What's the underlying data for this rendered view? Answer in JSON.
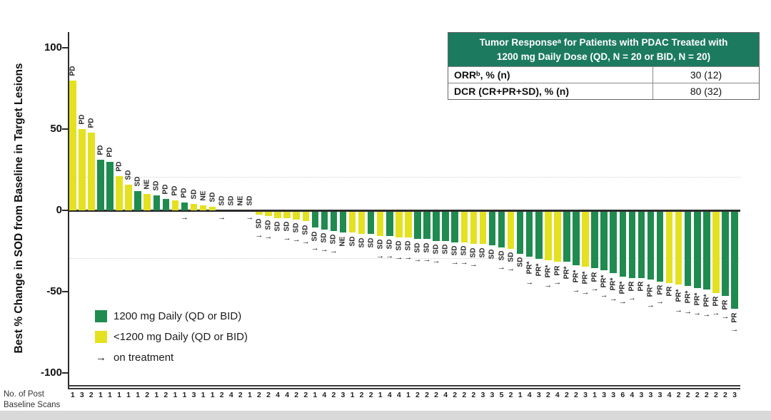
{
  "colors": {
    "green": "#1f8b4e",
    "yellow": "#e4e120",
    "table_header_green": "#1c7a5e",
    "ref_line_gray": "#d2d2d2"
  },
  "axis": {
    "y_title": "Best % Change in SOD from Baseline in Target Lesions",
    "y_ticks": [
      100,
      50,
      0,
      -50,
      -100
    ],
    "reference_lines": [
      20,
      -30
    ],
    "x_label_line1": "No. of Post",
    "x_label_line2": "Baseline Scans"
  },
  "table": {
    "title_line1": "Tumor Responseᵃ for Patients with PDAC Treated with",
    "title_line2": "1200 mg Daily Dose (QD, N = 20 or BID, N = 20)",
    "rows": [
      {
        "label": "ORRᵇ, % (n)",
        "value": "30 (12)"
      },
      {
        "label": "DCR (CR+PR+SD), % (n)",
        "value": "80 (32)"
      }
    ]
  },
  "legend": {
    "items": [
      {
        "swatch": "green",
        "label": "1200 mg Daily (QD or BID)"
      },
      {
        "swatch": "yellow",
        "label": "<1200 mg Daily (QD or BID)"
      }
    ],
    "arrow_glyph": "→",
    "arrow_label": "on treatment"
  },
  "chart_data": {
    "type": "bar",
    "subtype": "waterfall",
    "ylabel": "Best % Change in SOD from Baseline in Target Lesions",
    "ylim": [
      -100,
      100
    ],
    "reference_lines": [
      20,
      -30
    ],
    "color_legend": {
      "green": "1200 mg Daily (QD or BID)",
      "yellow": "<1200 mg Daily (QD or BID)"
    },
    "arrow_meaning": "on treatment",
    "bars": [
      {
        "value": 80,
        "color": "yellow",
        "response": "PD",
        "on_treatment": false,
        "scans": 1
      },
      {
        "value": 50,
        "color": "yellow",
        "response": "PD",
        "on_treatment": false,
        "scans": 3
      },
      {
        "value": 48,
        "color": "yellow",
        "response": "PD",
        "on_treatment": false,
        "scans": 2
      },
      {
        "value": 31,
        "color": "green",
        "response": "PD",
        "on_treatment": false,
        "scans": 1
      },
      {
        "value": 30,
        "color": "green",
        "response": "PD",
        "on_treatment": false,
        "scans": 1
      },
      {
        "value": 21,
        "color": "yellow",
        "response": "PD",
        "on_treatment": false,
        "scans": 1
      },
      {
        "value": 16,
        "color": "yellow",
        "response": "SD",
        "on_treatment": false,
        "scans": 1
      },
      {
        "value": 12,
        "color": "green",
        "response": "SD",
        "on_treatment": false,
        "scans": 1
      },
      {
        "value": 10,
        "color": "yellow",
        "response": "NE",
        "on_treatment": false,
        "scans": 2
      },
      {
        "value": 9,
        "color": "green",
        "response": "SD",
        "on_treatment": false,
        "scans": 1
      },
      {
        "value": 7,
        "color": "green",
        "response": "PD",
        "on_treatment": false,
        "scans": 2
      },
      {
        "value": 6,
        "color": "yellow",
        "response": "PD",
        "on_treatment": false,
        "scans": 1
      },
      {
        "value": 5,
        "color": "green",
        "response": "PD",
        "on_treatment": true,
        "scans": 1
      },
      {
        "value": 4,
        "color": "yellow",
        "response": "SD",
        "on_treatment": false,
        "scans": 3
      },
      {
        "value": 3,
        "color": "yellow",
        "response": "NE",
        "on_treatment": false,
        "scans": 1
      },
      {
        "value": 2,
        "color": "yellow",
        "response": "SD",
        "on_treatment": false,
        "scans": 1
      },
      {
        "value": 0,
        "color": "yellow",
        "response": "SD",
        "on_treatment": true,
        "scans": 2
      },
      {
        "value": 0,
        "color": "yellow",
        "response": "SD",
        "on_treatment": false,
        "scans": 4
      },
      {
        "value": 0,
        "color": "yellow",
        "response": "NE",
        "on_treatment": false,
        "scans": 2
      },
      {
        "value": 0,
        "color": "yellow",
        "response": "SD",
        "on_treatment": true,
        "scans": 1
      },
      {
        "value": -2,
        "color": "yellow",
        "response": "SD",
        "on_treatment": true,
        "scans": 2
      },
      {
        "value": -3,
        "color": "yellow",
        "response": "SD",
        "on_treatment": true,
        "scans": 2
      },
      {
        "value": -4,
        "color": "yellow",
        "response": "SD",
        "on_treatment": false,
        "scans": 4
      },
      {
        "value": -4,
        "color": "yellow",
        "response": "SD",
        "on_treatment": true,
        "scans": 4
      },
      {
        "value": -5,
        "color": "yellow",
        "response": "SD",
        "on_treatment": true,
        "scans": 2
      },
      {
        "value": -6,
        "color": "yellow",
        "response": "SD",
        "on_treatment": true,
        "scans": 2
      },
      {
        "value": -10,
        "color": "green",
        "response": "SD",
        "on_treatment": true,
        "scans": 1
      },
      {
        "value": -11,
        "color": "green",
        "response": "SD",
        "on_treatment": true,
        "scans": 4
      },
      {
        "value": -12,
        "color": "green",
        "response": "SD",
        "on_treatment": true,
        "scans": 2
      },
      {
        "value": -13,
        "color": "green",
        "response": "NE",
        "on_treatment": false,
        "scans": 3
      },
      {
        "value": -13,
        "color": "yellow",
        "response": "SD",
        "on_treatment": false,
        "scans": 1
      },
      {
        "value": -14,
        "color": "yellow",
        "response": "SD",
        "on_treatment": false,
        "scans": 2
      },
      {
        "value": -14,
        "color": "green",
        "response": "SD",
        "on_treatment": false,
        "scans": 2
      },
      {
        "value": -15,
        "color": "yellow",
        "response": "SD",
        "on_treatment": true,
        "scans": 1
      },
      {
        "value": -15,
        "color": "green",
        "response": "SD",
        "on_treatment": true,
        "scans": 4
      },
      {
        "value": -16,
        "color": "yellow",
        "response": "SD",
        "on_treatment": true,
        "scans": 4
      },
      {
        "value": -16,
        "color": "yellow",
        "response": "SD",
        "on_treatment": true,
        "scans": 1
      },
      {
        "value": -17,
        "color": "green",
        "response": "SD",
        "on_treatment": true,
        "scans": 2
      },
      {
        "value": -17,
        "color": "green",
        "response": "SD",
        "on_treatment": true,
        "scans": 2
      },
      {
        "value": -18,
        "color": "green",
        "response": "SD",
        "on_treatment": true,
        "scans": 2
      },
      {
        "value": -18,
        "color": "green",
        "response": "SD",
        "on_treatment": false,
        "scans": 4
      },
      {
        "value": -19,
        "color": "green",
        "response": "SD",
        "on_treatment": true,
        "scans": 2
      },
      {
        "value": -19,
        "color": "yellow",
        "response": "SD",
        "on_treatment": true,
        "scans": 2
      },
      {
        "value": -20,
        "color": "yellow",
        "response": "SD",
        "on_treatment": true,
        "scans": 2
      },
      {
        "value": -20,
        "color": "yellow",
        "response": "SD",
        "on_treatment": false,
        "scans": 3
      },
      {
        "value": -21,
        "color": "green",
        "response": "SD",
        "on_treatment": false,
        "scans": 3
      },
      {
        "value": -22,
        "color": "green",
        "response": "SD",
        "on_treatment": true,
        "scans": 5
      },
      {
        "value": -23,
        "color": "yellow",
        "response": "SD",
        "on_treatment": true,
        "scans": 2
      },
      {
        "value": -26,
        "color": "green",
        "response": "SD",
        "on_treatment": false,
        "scans": 1
      },
      {
        "value": -28,
        "color": "green",
        "response": "PR*",
        "on_treatment": true,
        "scans": 4
      },
      {
        "value": -29,
        "color": "green",
        "response": "PR*",
        "on_treatment": false,
        "scans": 3
      },
      {
        "value": -30,
        "color": "yellow",
        "response": "PR*",
        "on_treatment": true,
        "scans": 2
      },
      {
        "value": -31,
        "color": "yellow",
        "response": "PR",
        "on_treatment": true,
        "scans": 4
      },
      {
        "value": -31,
        "color": "green",
        "response": "PR*",
        "on_treatment": false,
        "scans": 2
      },
      {
        "value": -33,
        "color": "green",
        "response": "PR*",
        "on_treatment": true,
        "scans": 2
      },
      {
        "value": -34,
        "color": "yellow",
        "response": "PR*",
        "on_treatment": true,
        "scans": 3
      },
      {
        "value": -35,
        "color": "green",
        "response": "PR",
        "on_treatment": true,
        "scans": 1
      },
      {
        "value": -36,
        "color": "green",
        "response": "PR*",
        "on_treatment": true,
        "scans": 3
      },
      {
        "value": -38,
        "color": "green",
        "response": "PR*",
        "on_treatment": true,
        "scans": 3
      },
      {
        "value": -40,
        "color": "green",
        "response": "PR*",
        "on_treatment": true,
        "scans": 6
      },
      {
        "value": -41,
        "color": "green",
        "response": "PR",
        "on_treatment": true,
        "scans": 4
      },
      {
        "value": -41,
        "color": "green",
        "response": "PR",
        "on_treatment": false,
        "scans": 3
      },
      {
        "value": -42,
        "color": "green",
        "response": "PR*",
        "on_treatment": true,
        "scans": 3
      },
      {
        "value": -43,
        "color": "green",
        "response": "PR",
        "on_treatment": true,
        "scans": 3
      },
      {
        "value": -44,
        "color": "yellow",
        "response": "PR",
        "on_treatment": false,
        "scans": 4
      },
      {
        "value": -45,
        "color": "yellow",
        "response": "PR*",
        "on_treatment": true,
        "scans": 2
      },
      {
        "value": -46,
        "color": "green",
        "response": "PR*",
        "on_treatment": true,
        "scans": 2
      },
      {
        "value": -47,
        "color": "green",
        "response": "PR*",
        "on_treatment": true,
        "scans": 2
      },
      {
        "value": -48,
        "color": "green",
        "response": "PR*",
        "on_treatment": true,
        "scans": 2
      },
      {
        "value": -50,
        "color": "yellow",
        "response": "PR",
        "on_treatment": true,
        "scans": 2
      },
      {
        "value": -52,
        "color": "green",
        "response": "PR",
        "on_treatment": true,
        "scans": 2
      },
      {
        "value": -60,
        "color": "green",
        "response": "PR",
        "on_treatment": true,
        "scans": 3
      }
    ]
  }
}
